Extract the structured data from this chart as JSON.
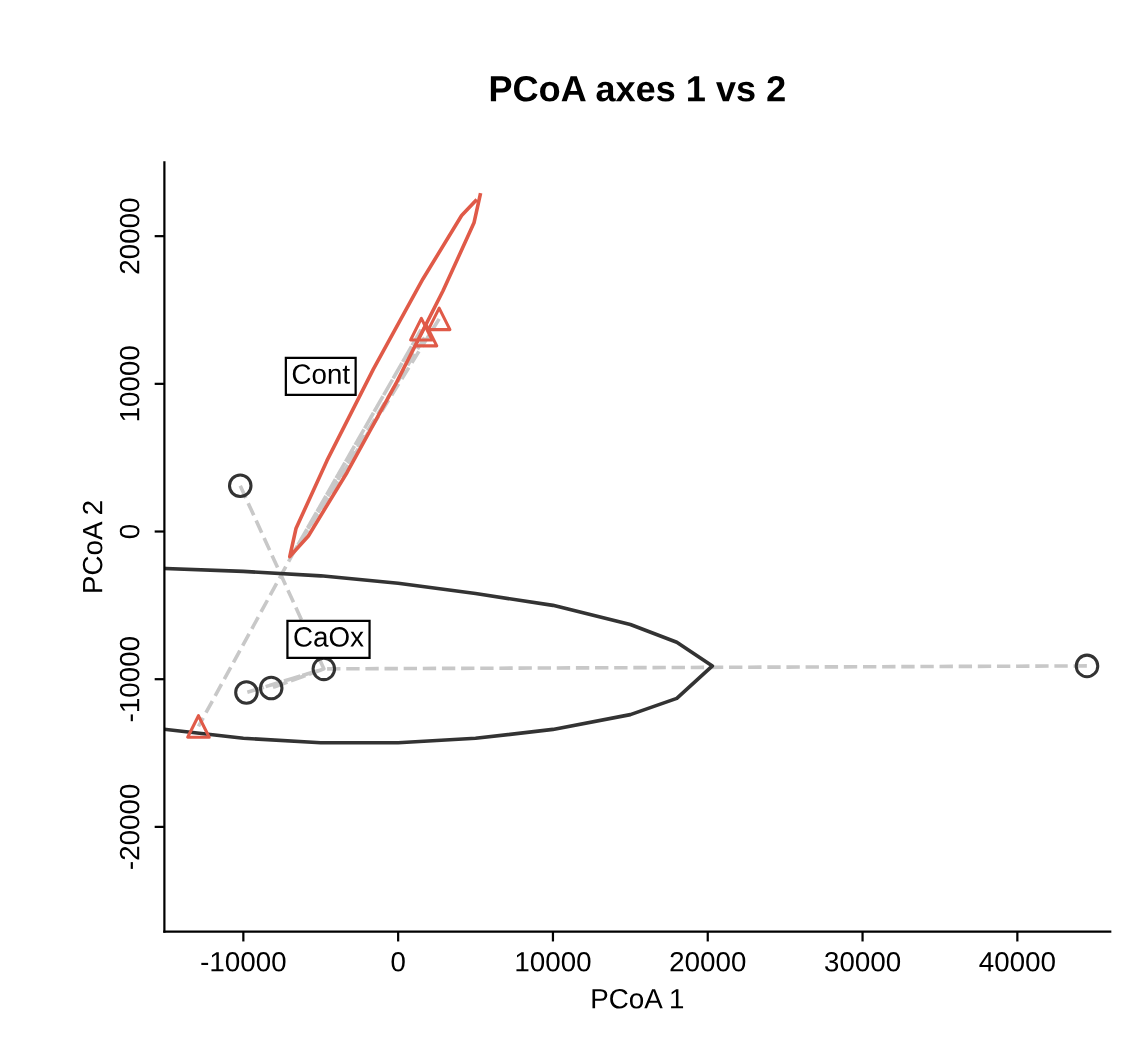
{
  "chart_data": {
    "type": "scatter",
    "title": "PCoA axes 1 vs 2",
    "xlabel": "PCoA 1",
    "ylabel": "PCoA 2",
    "xlim": [
      -15100,
      46000
    ],
    "ylim": [
      -27100,
      25000
    ],
    "xticks": [
      -10000,
      0,
      10000,
      20000,
      30000,
      40000
    ],
    "yticks": [
      -20000,
      -10000,
      0,
      10000,
      20000
    ],
    "grid": false,
    "legend": false,
    "series": [
      {
        "type": "line",
        "color": "#c8c8c8",
        "line_style": "dashed",
        "x": [
          2650,
          -6800,
          1500,
          -6800,
          1800,
          -6800,
          -12900
        ],
        "values": [
          14400,
          -1500,
          13700,
          -1500,
          13300,
          -1500,
          -13200
        ]
      },
      {
        "type": "line",
        "color": "#c8c8c8",
        "line_style": "dashed",
        "x": [
          -10200,
          -4800,
          -9800,
          -4800,
          -8200,
          -4800,
          44500
        ],
        "values": [
          3100,
          -9300,
          -10900,
          -9300,
          -10600,
          -9300,
          -9100
        ]
      },
      {
        "type": "line",
        "color": "#e05a48",
        "line_style": "solid",
        "x": [
          5300,
          4900,
          2900,
          -100,
          -3300,
          -5800,
          -7000,
          -6600,
          -4600,
          -1600,
          1600,
          4100,
          5000
        ],
        "values": [
          22800,
          20900,
          16300,
          10100,
          4000,
          -300,
          -1700,
          200,
          4800,
          11000,
          17100,
          21400,
          22400
        ]
      },
      {
        "type": "line",
        "color": "#333333",
        "line_style": "solid",
        "x": [
          -15000,
          -10000,
          -5000,
          0,
          5000,
          10000,
          15000,
          18000,
          20300,
          18000,
          15000,
          10000,
          5000,
          0,
          -5000,
          -10000,
          -15000
        ],
        "values": [
          -2500,
          -2700,
          -3000,
          -3500,
          -4200,
          -5000,
          -6300,
          -7500,
          -9100,
          -11300,
          -12400,
          -13400,
          -14000,
          -14300,
          -14300,
          -14000,
          -13400
        ]
      },
      {
        "marker": "triangle",
        "color": "#e05a48",
        "x": [
          2650,
          1500,
          1800,
          -12900
        ],
        "values": [
          14400,
          13700,
          13300,
          -13200
        ]
      },
      {
        "marker": "circle",
        "color": "#333333",
        "x": [
          -10200,
          -9800,
          -8200,
          -4800,
          44500
        ],
        "values": [
          3100,
          -10900,
          -10600,
          -9300,
          -9100
        ]
      }
    ],
    "annotations": [
      {
        "text": "Cont",
        "x": -5000,
        "y": 10500
      },
      {
        "text": "CaOx",
        "x": -4500,
        "y": -7300
      }
    ]
  }
}
